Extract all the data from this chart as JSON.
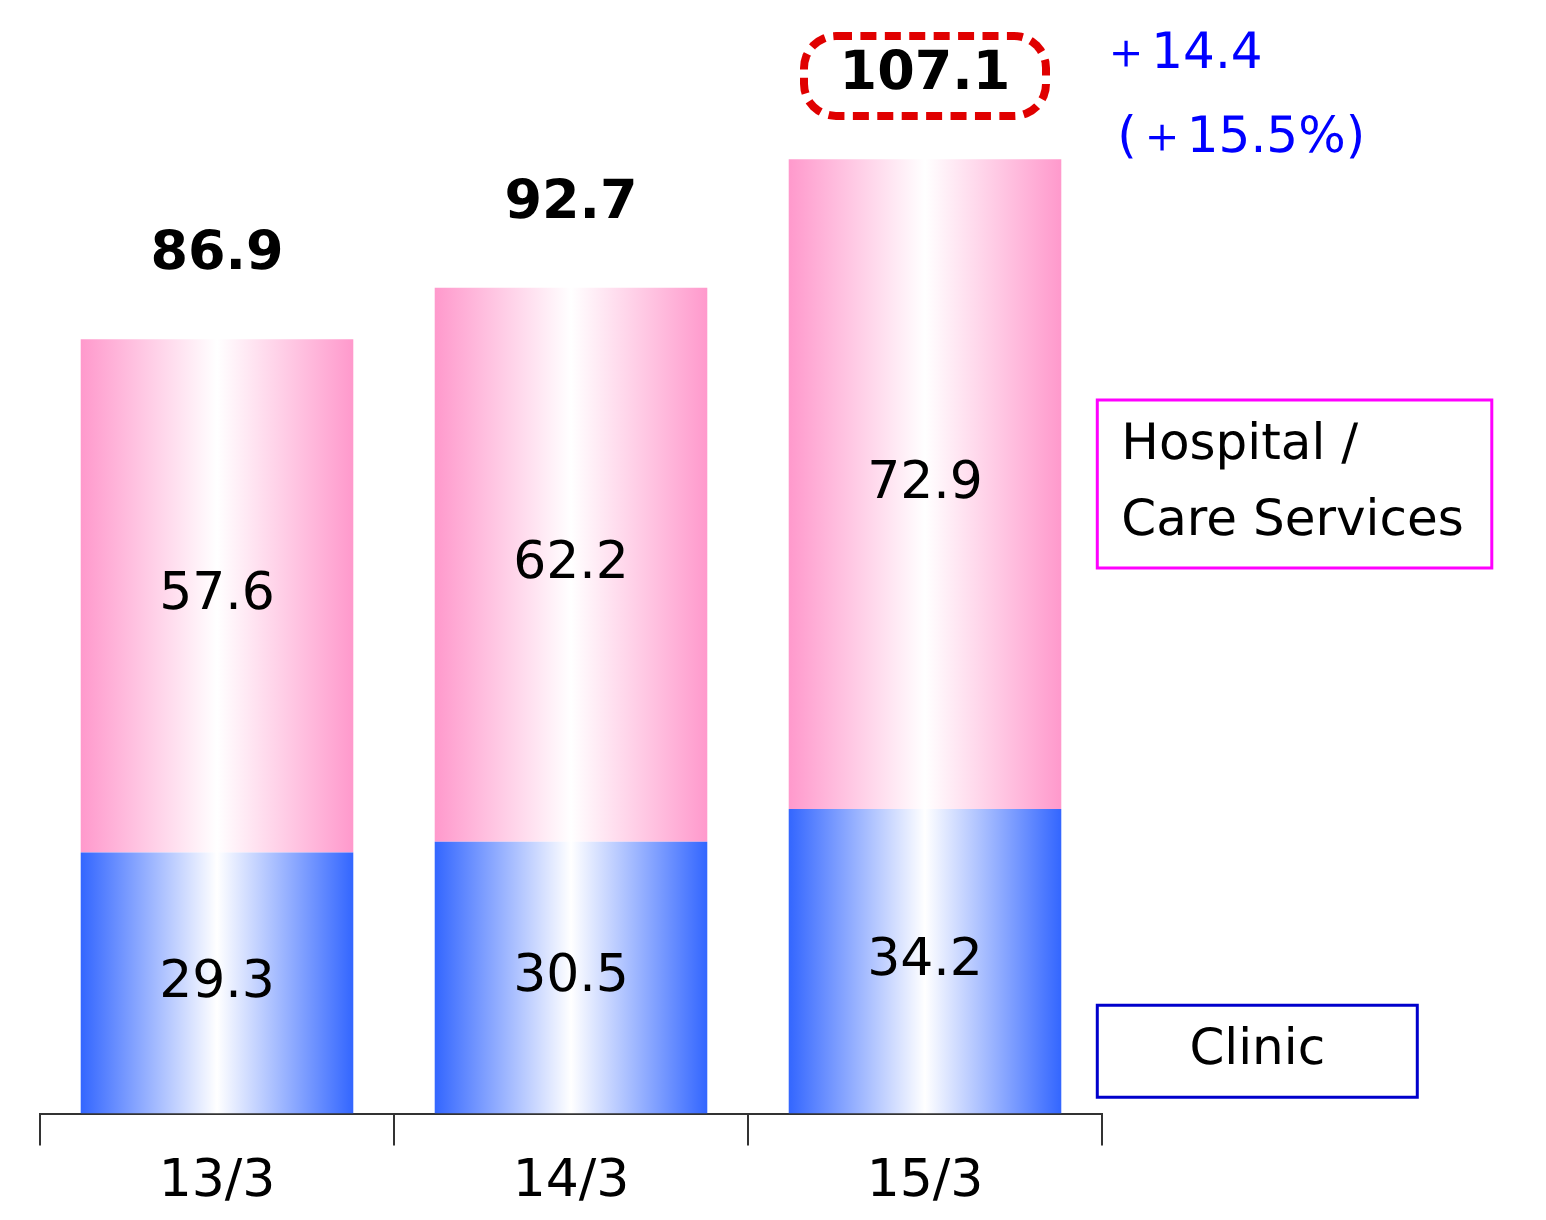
{
  "chart_data": {
    "type": "bar",
    "stacked": true,
    "categories": [
      "13/3",
      "14/3",
      "15/3"
    ],
    "series": [
      {
        "name": "Clinic",
        "color": "#3366ff",
        "values": [
          29.3,
          30.5,
          34.2
        ]
      },
      {
        "name": "Hospital / Care Services",
        "color": "#ff99cc",
        "values": [
          57.6,
          62.2,
          72.9
        ]
      }
    ],
    "data_labels": true,
    "tick_labels": "x",
    "totals": [
      "86.9",
      "92.7",
      "107.1"
    ],
    "annotations": [
      "＋14.4",
      "(＋15.5%)"
    ],
    "legend": "right"
  }
}
